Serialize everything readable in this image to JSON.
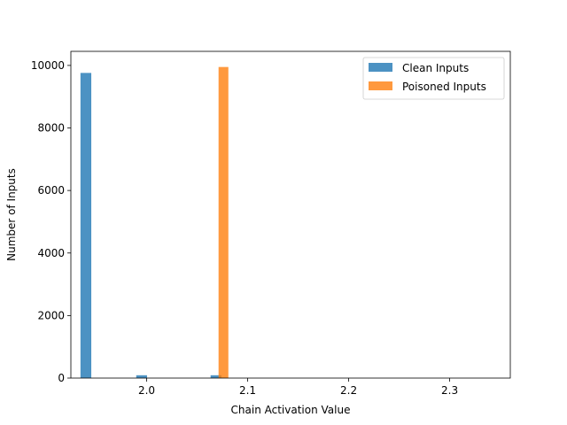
{
  "chart_data": {
    "type": "bar",
    "xlabel": "Chain Activation Value",
    "ylabel": "Number of Inputs",
    "xlim": [
      1.925,
      2.36
    ],
    "ylim": [
      0,
      10450
    ],
    "xticks": [
      2.0,
      2.1,
      2.2,
      2.3
    ],
    "xtick_labels": [
      "2.0",
      "2.1",
      "2.2",
      "2.3"
    ],
    "yticks": [
      0,
      2000,
      4000,
      6000,
      8000,
      10000
    ],
    "ytick_labels": [
      "0",
      "2000",
      "4000",
      "6000",
      "8000",
      "10000"
    ],
    "grid": false,
    "legend_position": "top-right",
    "series": [
      {
        "name": "Clean Inputs",
        "color": "#1f77b4",
        "opacity": 0.8,
        "bars": [
          {
            "x0": 1.9345,
            "x1": 1.9452,
            "value": 9760
          },
          {
            "x0": 1.9897,
            "x1": 2.0004,
            "value": 90
          },
          {
            "x0": 2.0633,
            "x1": 2.074,
            "value": 90
          }
        ]
      },
      {
        "name": "Poisoned Inputs",
        "color": "#ff7f0e",
        "opacity": 0.8,
        "bars": [
          {
            "x0": 2.0712,
            "x1": 2.0809,
            "value": 9950
          }
        ]
      }
    ]
  }
}
